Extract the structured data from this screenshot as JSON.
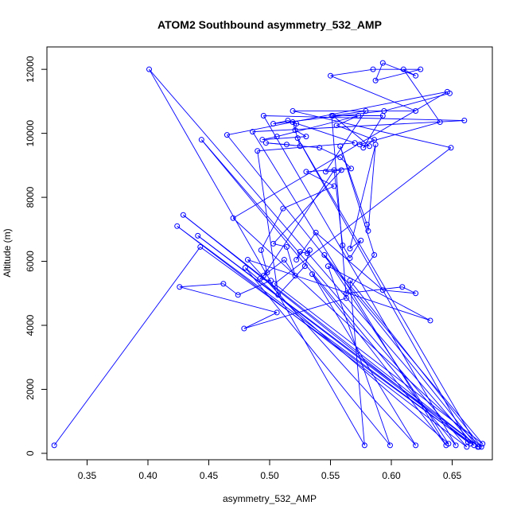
{
  "chart_data": {
    "type": "line",
    "title": "ATOM2 Southbound asymmetry_532_AMP",
    "xlabel": "asymmetry_532_AMP",
    "ylabel": "Altitude (m)",
    "xlim": [
      0.317,
      0.683
    ],
    "ylim": [
      -200,
      12700
    ],
    "xticks": [
      0.35,
      0.4,
      0.45,
      0.5,
      0.55,
      0.6,
      0.65
    ],
    "xtick_labels": [
      "0.35",
      "0.40",
      "0.45",
      "0.50",
      "0.55",
      "0.60",
      "0.65"
    ],
    "yticks": [
      0,
      2000,
      4000,
      6000,
      8000,
      10000,
      12000
    ],
    "ytick_labels": [
      "0",
      "2000",
      "4000",
      "6000",
      "8000",
      "10000",
      "12000"
    ],
    "grid": false,
    "series": [
      {
        "color": "#0000ff",
        "marker": "circle-open",
        "points": [
          [
            0.323,
            250
          ],
          [
            0.443,
            6450
          ],
          [
            0.665,
            300
          ],
          [
            0.429,
            7450
          ],
          [
            0.672,
            200
          ],
          [
            0.441,
            6800
          ],
          [
            0.668,
            250
          ],
          [
            0.401,
            12000
          ],
          [
            0.578,
            250
          ],
          [
            0.566,
            5400
          ],
          [
            0.674,
            200
          ],
          [
            0.47,
            7350
          ],
          [
            0.646,
            11300
          ],
          [
            0.465,
            9950
          ],
          [
            0.671,
            200
          ],
          [
            0.523,
            9850
          ],
          [
            0.663,
            350
          ],
          [
            0.424,
            7100
          ],
          [
            0.662,
            200
          ],
          [
            0.444,
            9800
          ],
          [
            0.653,
            250
          ],
          [
            0.495,
            10550
          ],
          [
            0.66,
            10400
          ],
          [
            0.486,
            10050
          ],
          [
            0.645,
            250
          ],
          [
            0.535,
            5600
          ],
          [
            0.62,
            250
          ],
          [
            0.482,
            6050
          ],
          [
            0.632,
            4150
          ],
          [
            0.548,
            5850
          ],
          [
            0.599,
            250
          ],
          [
            0.48,
            5800
          ],
          [
            0.647,
            300
          ],
          [
            0.545,
            6200
          ],
          [
            0.675,
            300
          ],
          [
            0.504,
            5300
          ],
          [
            0.649,
            9550
          ],
          [
            0.519,
            10700
          ],
          [
            0.62,
            10700
          ],
          [
            0.55,
            11800
          ],
          [
            0.585,
            12000
          ],
          [
            0.624,
            12000
          ],
          [
            0.587,
            11650
          ],
          [
            0.593,
            12200
          ],
          [
            0.62,
            11800
          ],
          [
            0.61,
            12000
          ],
          [
            0.64,
            10350
          ],
          [
            0.574,
            9650
          ],
          [
            0.582,
            9600
          ],
          [
            0.552,
            10550
          ],
          [
            0.579,
            10700
          ],
          [
            0.546,
            8800
          ],
          [
            0.559,
            8850
          ],
          [
            0.503,
            6550
          ],
          [
            0.514,
            6450
          ],
          [
            0.521,
            5550
          ],
          [
            0.512,
            6050
          ],
          [
            0.495,
            5550
          ],
          [
            0.553,
            8850
          ],
          [
            0.56,
            6500
          ],
          [
            0.566,
            6100
          ],
          [
            0.575,
            6650
          ],
          [
            0.566,
            6400
          ],
          [
            0.587,
            9650
          ],
          [
            0.581,
            6950
          ],
          [
            0.58,
            7150
          ],
          [
            0.558,
            9600
          ],
          [
            0.586,
            6200
          ],
          [
            0.563,
            5000
          ],
          [
            0.609,
            5200
          ],
          [
            0.62,
            5000
          ],
          [
            0.593,
            5100
          ],
          [
            0.538,
            6900
          ],
          [
            0.522,
            6050
          ],
          [
            0.525,
            6300
          ],
          [
            0.531,
            6250
          ],
          [
            0.533,
            6350
          ],
          [
            0.529,
            5850
          ],
          [
            0.507,
            4950
          ],
          [
            0.49,
            9450
          ],
          [
            0.57,
            9700
          ],
          [
            0.519,
            10350
          ],
          [
            0.525,
            9600
          ],
          [
            0.514,
            9650
          ],
          [
            0.497,
            9700
          ],
          [
            0.541,
            9550
          ],
          [
            0.558,
            9250
          ],
          [
            0.567,
            8900
          ],
          [
            0.53,
            8800
          ],
          [
            0.553,
            8350
          ],
          [
            0.511,
            7650
          ],
          [
            0.493,
            6350
          ],
          [
            0.498,
            5650
          ],
          [
            0.492,
            5450
          ],
          [
            0.501,
            5400
          ],
          [
            0.474,
            4950
          ],
          [
            0.462,
            5300
          ],
          [
            0.426,
            5200
          ],
          [
            0.506,
            4400
          ],
          [
            0.479,
            3900
          ],
          [
            0.563,
            4850
          ],
          [
            0.551,
            10550
          ],
          [
            0.593,
            10550
          ],
          [
            0.577,
            9550
          ],
          [
            0.586,
            9800
          ],
          [
            0.555,
            10250
          ],
          [
            0.573,
            10550
          ],
          [
            0.506,
            9900
          ],
          [
            0.494,
            9800
          ],
          [
            0.53,
            9900
          ],
          [
            0.521,
            10100
          ],
          [
            0.522,
            10300
          ],
          [
            0.515,
            10400
          ],
          [
            0.503,
            10300
          ],
          [
            0.594,
            10700
          ],
          [
            0.648,
            11250
          ]
        ]
      }
    ]
  }
}
